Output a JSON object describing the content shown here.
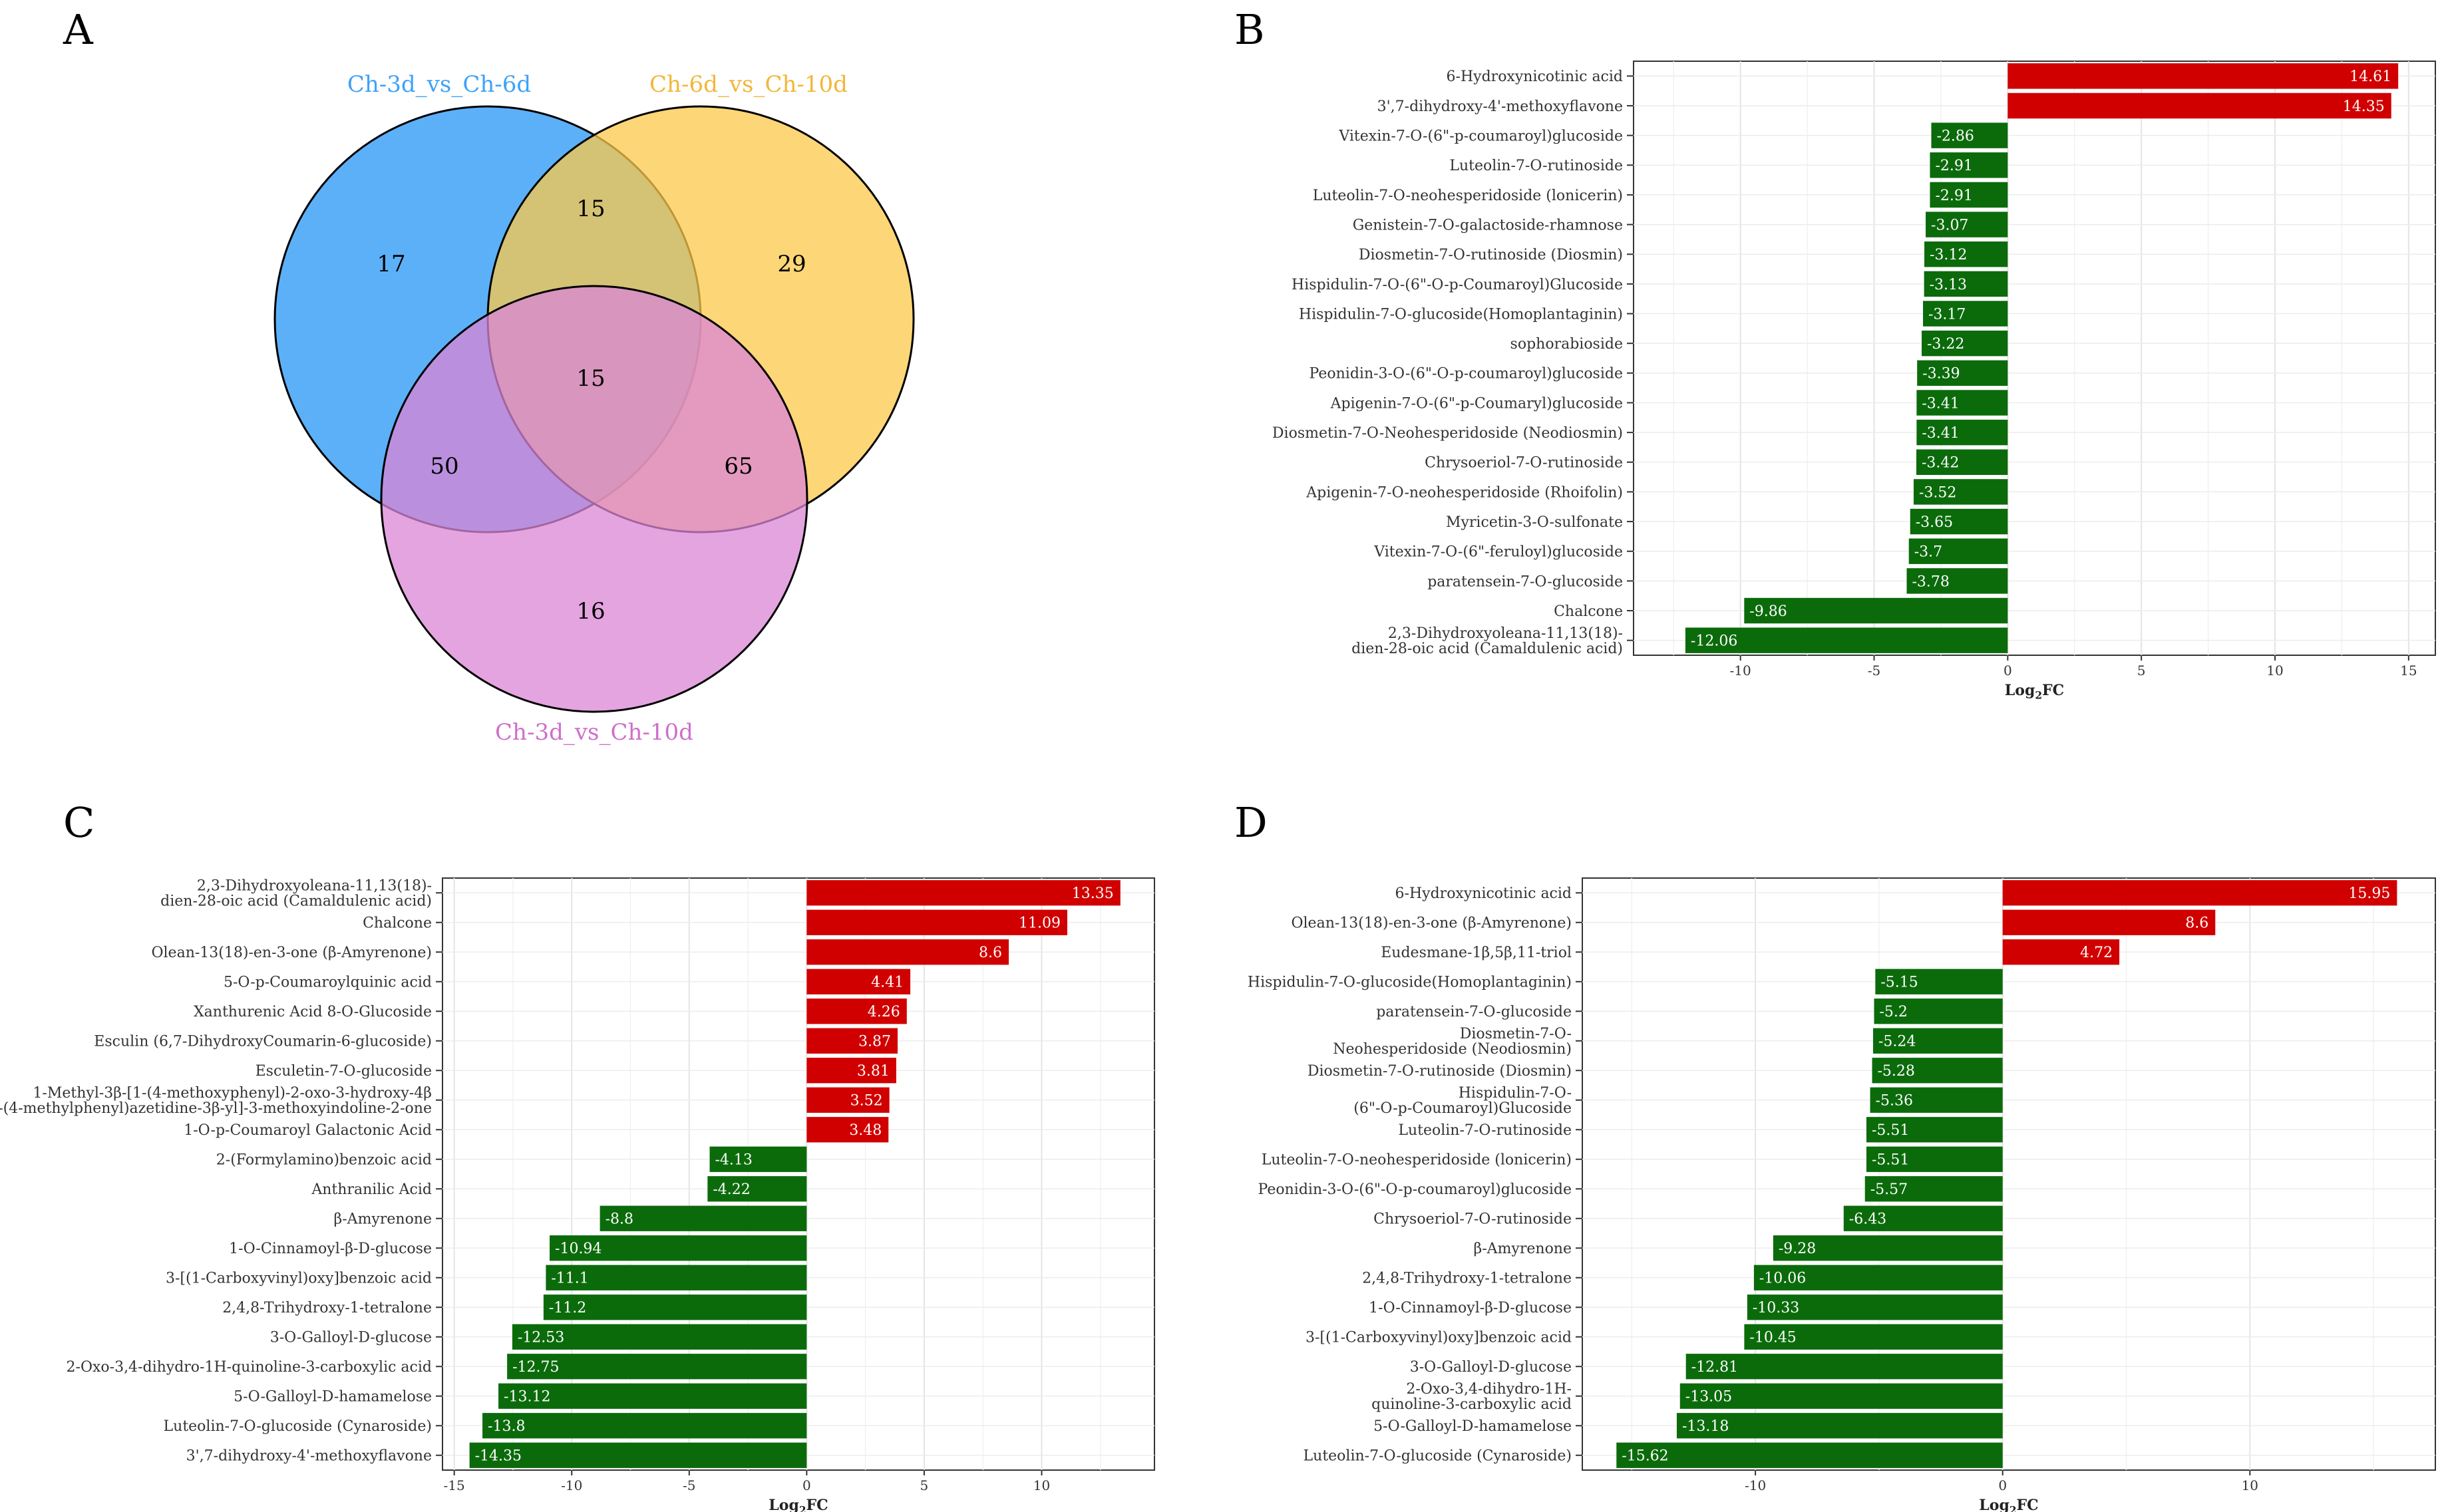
{
  "panels": {
    "A": "A",
    "B": "B",
    "C": "C",
    "D": "D"
  },
  "venn": {
    "sets": [
      {
        "name": "Ch-3d_vs_Ch-6d",
        "color": "#3fa2f7",
        "label_color": "#3fa2f7"
      },
      {
        "name": "Ch-6d_vs_Ch-10d",
        "color": "#fcc84a",
        "label_color": "#f2b738"
      },
      {
        "name": "Ch-3d_vs_Ch-10d",
        "color": "#d985d6",
        "label_color": "#cf6fcb"
      }
    ],
    "regions": {
      "only_3d6d": "17",
      "only_6d10d": "29",
      "only_3d10d": "16",
      "3d6d_and_6d10d": "15",
      "all_three": "15",
      "3d6d_and_3d10d": "50",
      "6d10d_and_3d10d": "65"
    }
  },
  "chart_data": [
    {
      "panel": "B",
      "type": "bar",
      "orientation": "horizontal",
      "xlabel": "Log2FC",
      "xlim": [
        -14,
        16
      ],
      "xticks": [
        -10,
        -5,
        0,
        5,
        10,
        15
      ],
      "colors": {
        "up": "#d10000",
        "down": "#0b6b0b"
      },
      "categories": [
        [
          "6-Hydroxynicotinic acid"
        ],
        [
          "3',7-dihydroxy-4'-methoxyflavone"
        ],
        [
          "Vitexin-7-O-(6\"-p-coumaroyl)glucoside"
        ],
        [
          "Luteolin-7-O-rutinoside"
        ],
        [
          "Luteolin-7-O-neohesperidoside (lonicerin)"
        ],
        [
          "Genistein-7-O-galactoside-rhamnose"
        ],
        [
          "Diosmetin-7-O-rutinoside (Diosmin)"
        ],
        [
          "Hispidulin-7-O-(6\"-O-p-Coumaroyl)Glucoside"
        ],
        [
          "Hispidulin-7-O-glucoside(Homoplantaginin)"
        ],
        [
          "sophorabioside"
        ],
        [
          "Peonidin-3-O-(6\"-O-p-coumaroyl)glucoside"
        ],
        [
          "Apigenin-7-O-(6\"-p-Coumaryl)glucoside"
        ],
        [
          "Diosmetin-7-O-Neohesperidoside (Neodiosmin)"
        ],
        [
          "Chrysoeriol-7-O-rutinoside"
        ],
        [
          "Apigenin-7-O-neohesperidoside (Rhoifolin)"
        ],
        [
          "Myricetin-3-O-sulfonate"
        ],
        [
          "Vitexin-7-O-(6\"-feruloyl)glucoside"
        ],
        [
          "paratensein-7-O-glucoside"
        ],
        [
          "Chalcone"
        ],
        [
          "2,3-Dihydroxyoleana-11,13(18)-",
          "dien-28-oic acid (Camaldulenic acid)"
        ]
      ],
      "values": [
        14.61,
        14.35,
        -2.86,
        -2.91,
        -2.91,
        -3.07,
        -3.12,
        -3.13,
        -3.17,
        -3.22,
        -3.39,
        -3.41,
        -3.41,
        -3.42,
        -3.52,
        -3.65,
        -3.7,
        -3.78,
        -9.86,
        -12.06
      ]
    },
    {
      "panel": "C",
      "type": "bar",
      "orientation": "horizontal",
      "xlabel": "Log2FC",
      "xlim": [
        -15.5,
        14.8
      ],
      "xticks": [
        -15,
        -10,
        -5,
        0,
        5,
        10
      ],
      "colors": {
        "up": "#d10000",
        "down": "#0b6b0b"
      },
      "categories": [
        [
          "2,3-Dihydroxyoleana-11,13(18)-",
          "dien-28-oic acid (Camaldulenic acid)"
        ],
        [
          "Chalcone"
        ],
        [
          "Olean-13(18)-en-3-one (β-Amyrenone)"
        ],
        [
          "5-O-p-Coumaroylquinic acid"
        ],
        [
          "Xanthurenic Acid 8-O-Glucoside"
        ],
        [
          "Esculin (6,7-DihydroxyCoumarin-6-glucoside)"
        ],
        [
          "Esculetin-7-O-glucoside"
        ],
        [
          "1-Methyl-3β-[1-(4-methoxyphenyl)-2-oxo-3-hydroxy-4β",
          "-(4-methylphenyl)azetidine-3β-yl]-3-methoxyindoline-2-one"
        ],
        [
          "1-O-p-Coumaroyl Galactonic Acid"
        ],
        [
          "2-(Formylamino)benzoic acid"
        ],
        [
          "Anthranilic Acid"
        ],
        [
          "β-Amyrenone"
        ],
        [
          "1-O-Cinnamoyl-β-D-glucose"
        ],
        [
          "3-[(1-Carboxyvinyl)oxy]benzoic acid"
        ],
        [
          "2,4,8-Trihydroxy-1-tetralone"
        ],
        [
          "3-O-Galloyl-D-glucose"
        ],
        [
          "2-Oxo-3,4-dihydro-1H-quinoline-3-carboxylic acid"
        ],
        [
          "5-O-Galloyl-D-hamamelose"
        ],
        [
          "Luteolin-7-O-glucoside (Cynaroside)"
        ],
        [
          "3',7-dihydroxy-4'-methoxyflavone"
        ]
      ],
      "values": [
        13.35,
        11.09,
        8.6,
        4.41,
        4.26,
        3.87,
        3.81,
        3.52,
        3.48,
        -4.13,
        -4.22,
        -8.8,
        -10.94,
        -11.1,
        -11.2,
        -12.53,
        -12.75,
        -13.12,
        -13.8,
        -14.35
      ]
    },
    {
      "panel": "D",
      "type": "bar",
      "orientation": "horizontal",
      "xlabel": "Log2FC",
      "xlim": [
        -17,
        17.5
      ],
      "xticks": [
        -10,
        0,
        10
      ],
      "colors": {
        "up": "#d10000",
        "down": "#0b6b0b"
      },
      "categories": [
        [
          "6-Hydroxynicotinic acid"
        ],
        [
          "Olean-13(18)-en-3-one (β-Amyrenone)"
        ],
        [
          "Eudesmane-1β,5β,11-triol"
        ],
        [
          "Hispidulin-7-O-glucoside(Homoplantaginin)"
        ],
        [
          "paratensein-7-O-glucoside"
        ],
        [
          "Diosmetin-7-O-",
          "Neohesperidoside (Neodiosmin)"
        ],
        [
          "Diosmetin-7-O-rutinoside (Diosmin)"
        ],
        [
          "Hispidulin-7-O-",
          "(6\"-O-p-Coumaroyl)Glucoside"
        ],
        [
          "Luteolin-7-O-rutinoside"
        ],
        [
          "Luteolin-7-O-neohesperidoside (lonicerin)"
        ],
        [
          "Peonidin-3-O-(6\"-O-p-coumaroyl)glucoside"
        ],
        [
          "Chrysoeriol-7-O-rutinoside"
        ],
        [
          "β-Amyrenone"
        ],
        [
          "2,4,8-Trihydroxy-1-tetralone"
        ],
        [
          "1-O-Cinnamoyl-β-D-glucose"
        ],
        [
          "3-[(1-Carboxyvinyl)oxy]benzoic acid"
        ],
        [
          "3-O-Galloyl-D-glucose"
        ],
        [
          "2-Oxo-3,4-dihydro-1H-",
          "quinoline-3-carboxylic acid"
        ],
        [
          "5-O-Galloyl-D-hamamelose"
        ],
        [
          "Luteolin-7-O-glucoside (Cynaroside)"
        ]
      ],
      "values": [
        15.95,
        8.6,
        4.72,
        -5.15,
        -5.2,
        -5.24,
        -5.28,
        -5.36,
        -5.51,
        -5.51,
        -5.57,
        -6.43,
        -9.28,
        -10.06,
        -10.33,
        -10.45,
        -12.81,
        -13.05,
        -13.18,
        -15.62
      ]
    }
  ]
}
